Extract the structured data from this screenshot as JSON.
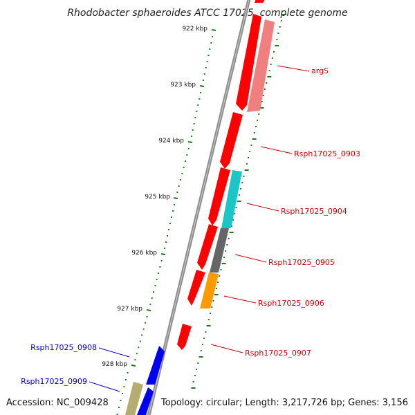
{
  "title": "Rhodobacter sphaeroides ATCC 17025, complete genome",
  "footer": {
    "accession": "Accession: NC_009428",
    "summary": "Topology: circular; Length: 3,217,726 bp; Genes: 3,156"
  },
  "ticks": [
    "922 kbp",
    "923 kbp",
    "924 kbp",
    "925 kbp",
    "926 kbp",
    "927 kbp",
    "928 kbp"
  ],
  "genes": [
    {
      "label": "argS",
      "color": "#cc0000"
    },
    {
      "label": "Rsph17025_0903",
      "color": "#cc0000"
    },
    {
      "label": "Rsph17025_0904",
      "color": "#cc0000"
    },
    {
      "label": "Rsph17025_0905",
      "color": "#cc0000"
    },
    {
      "label": "Rsph17025_0906",
      "color": "#cc0000"
    },
    {
      "label": "Rsph17025_0907",
      "color": "#cc0000"
    },
    {
      "label": "Rsph17025_0908",
      "color": "#0000cc"
    },
    {
      "label": "Rsph17025_0909",
      "color": "#0000cc"
    }
  ],
  "colors": {
    "cds_forward": "#ff0000",
    "cds_reverse": "#0000ee",
    "feature_pink": "#f08080",
    "feature_cyan": "#1ac6c6",
    "feature_grey": "#666666",
    "feature_orange": "#ff9900",
    "feature_khaki": "#b3ad72",
    "tick_green": "#1f7a1f",
    "backbone": "#8c8c8c"
  }
}
